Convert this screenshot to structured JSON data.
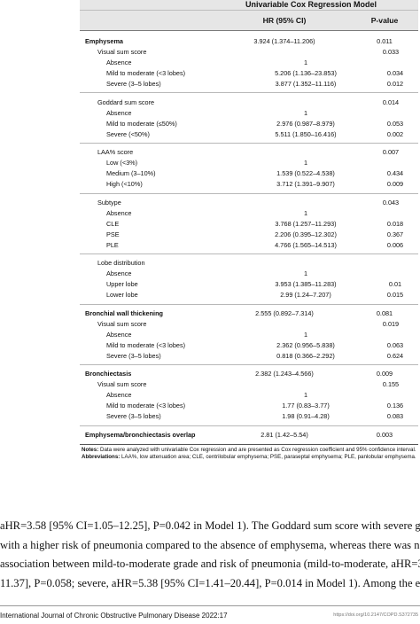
{
  "table": {
    "group_header": "Univariable Cox Regression Model",
    "col_hr": "HR (95% CI)",
    "col_p": "P-value",
    "rows": [
      {
        "label": "Emphysema",
        "hr": "3.924 (1.374–11.206)",
        "p": "0.011"
      },
      {
        "label": "Visual sum score",
        "hr": "",
        "p": "0.033"
      },
      {
        "label": "Absence",
        "hr": "1",
        "p": ""
      },
      {
        "label": "Mild to moderate (<3 lobes)",
        "hr": "5.206 (1.136–23.853)",
        "p": "0.034"
      },
      {
        "label": "Severe (3–5 lobes)",
        "hr": "3.877 (1.352–11.116)",
        "p": "0.012"
      },
      {
        "label": "Goddard sum score",
        "hr": "",
        "p": "0.014"
      },
      {
        "label": "Absence",
        "hr": "1",
        "p": ""
      },
      {
        "label": "Mild to moderate (≤50%)",
        "hr": "2.976 (0.987–8.979)",
        "p": "0.053"
      },
      {
        "label": "Severe (<50%)",
        "hr": "5.511 (1.850–16.416)",
        "p": "0.002"
      },
      {
        "label": "LAA% score",
        "hr": "",
        "p": "0.007"
      },
      {
        "label": "Low (<3%)",
        "hr": "1",
        "p": ""
      },
      {
        "label": "Medium (3–10%)",
        "hr": "1.539 (0.522–4.538)",
        "p": "0.434"
      },
      {
        "label": "High (<10%)",
        "hr": "3.712 (1.391–9.907)",
        "p": "0.009"
      },
      {
        "label": "Subtype",
        "hr": "",
        "p": "0.043"
      },
      {
        "label": "Absence",
        "hr": "1",
        "p": ""
      },
      {
        "label": "CLE",
        "hr": "3.768 (1.257–11.293)",
        "p": "0.018"
      },
      {
        "label": "PSE",
        "hr": "2.206 (0.395–12.302)",
        "p": "0.367"
      },
      {
        "label": "PLE",
        "hr": "4.766 (1.565–14.513)",
        "p": "0.006"
      },
      {
        "label": "Lobe distribution",
        "hr": "",
        "p": ""
      },
      {
        "label": "Absence",
        "hr": "1",
        "p": ""
      },
      {
        "label": "Upper lobe",
        "hr": "3.953 (1.385–11.283)",
        "p": "0.01"
      },
      {
        "label": "Lower lobe",
        "hr": "2.99 (1.24–7.207)",
        "p": "0.015"
      },
      {
        "label": "Bronchial wall thickening",
        "hr": "2.555 (0.892–7.314)",
        "p": "0.081"
      },
      {
        "label": "Visual sum score",
        "hr": "",
        "p": "0.019"
      },
      {
        "label": "Absence",
        "hr": "1",
        "p": ""
      },
      {
        "label": "Mild to moderate (<3 lobes)",
        "hr": "2.362 (0.956–5.838)",
        "p": "0.063"
      },
      {
        "label": "Severe (3–5 lobes)",
        "hr": "0.818 (0.366–2.292)",
        "p": "0.624"
      },
      {
        "label": "Bronchiectasis",
        "hr": "2.382 (1.243–4.566)",
        "p": "0.009"
      },
      {
        "label": "Visual sum score",
        "hr": "",
        "p": "0.155"
      },
      {
        "label": "Absence",
        "hr": "1",
        "p": ""
      },
      {
        "label": "Mild to moderate (<3 lobes)",
        "hr": "1.77 (0.83–3.77)",
        "p": "0.136"
      },
      {
        "label": "Severe (3–5 lobes)",
        "hr": "1.98 (0.91–4.28)",
        "p": "0.083"
      },
      {
        "label": "Emphysema/bronchiectasis overlap",
        "hr": "2.81 (1.42–5.54)",
        "p": "0.003"
      }
    ]
  },
  "notes": {
    "notes_label": "Notes:",
    "notes_text": " Data were analyzed with univariable Cox regression and are presented as Cox regression coefficient and 95% confidence interval.",
    "abbr_label": "Abbreviations:",
    "abbr_text": " LAA%, low attenuation area; CLE, centrilobular emphysema; PSE, paraseptal emphysema; PLE, panlobular emphysema."
  },
  "body": {
    "line1": "aHR=3.58 [95% CI=1.05–12.25], P=0.042 in Model 1). The Goddard sum score with severe grade was as",
    "line2": "with a higher risk of pneumonia compared to the absence of emphysema, whereas there was no si",
    "line3": "association between mild-to-moderate grade and risk of pneumonia (mild-to-moderate, aHR=3.31 [95% C",
    "line4": "11.37], P=0.058; severe, aHR=5.38 [95% CI=1.41–20.44], P=0.014 in Model 1). Among the emphysema s"
  },
  "footer": {
    "journal": "International Journal of Chronic Obstructive Pulmonary Disease 2022:17",
    "doi": "https://doi.org/10.2147/COPD.S372735"
  }
}
